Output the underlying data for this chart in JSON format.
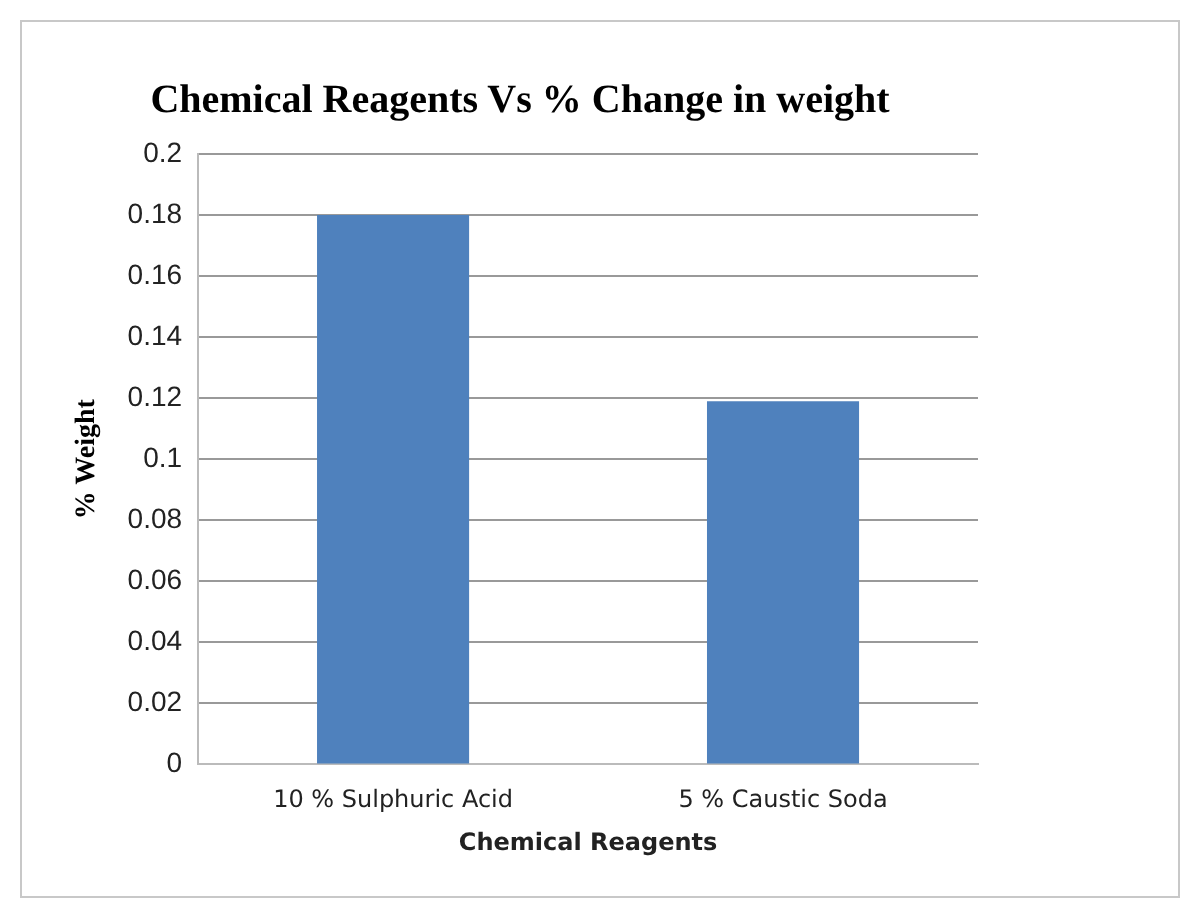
{
  "chart_data": {
    "type": "bar",
    "title": "Chemical Reagents Vs % Change in weight",
    "xlabel": "Chemical Reagents",
    "ylabel": "% Weight",
    "categories": [
      "10 % Sulphuric Acid",
      "5 % Caustic Soda"
    ],
    "values": [
      0.18,
      0.119
    ],
    "color": "#4f81bd",
    "ylim": [
      0,
      0.2
    ],
    "yticks": [
      0,
      0.02,
      0.04,
      0.06,
      0.08,
      0.1,
      0.12,
      0.14,
      0.16,
      0.18,
      0.2
    ],
    "grid": "y"
  }
}
